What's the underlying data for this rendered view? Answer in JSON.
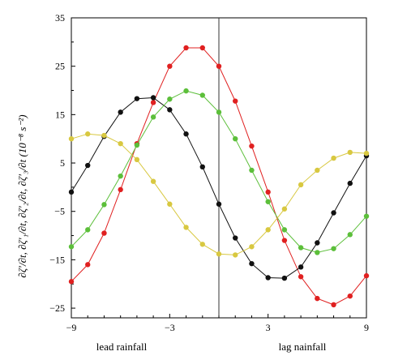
{
  "chart_data": {
    "type": "line",
    "title": "",
    "xlabel": "",
    "ylabel": "∂ζ′/∂t, ∂ζ′₁/∂t, ∂ζ′₂/∂t, ∂ζ′₃/∂t  (10⁻⁸ s⁻²)",
    "xlim": [
      -9,
      9
    ],
    "ylim": [
      -27,
      35
    ],
    "xticks": [
      -9,
      -3,
      3,
      9
    ],
    "yticks": [
      35,
      25,
      15,
      5,
      -5,
      -15,
      -25
    ],
    "x_annotations": {
      "left": "lead  rainfall",
      "right": "lag  nainfall"
    },
    "reference_line_x": 0,
    "grid": false,
    "legend": "none",
    "x": [
      -9,
      -8,
      -7,
      -6,
      -5,
      -4,
      -3,
      -2,
      -1,
      0,
      1,
      2,
      3,
      4,
      5,
      6,
      7,
      8,
      9
    ],
    "series": [
      {
        "color": "#e02020",
        "values": [
          -19.5,
          -16,
          -9.5,
          -0.5,
          9,
          17.5,
          25,
          28.8,
          28.8,
          25,
          17.8,
          8.5,
          -1,
          -11,
          -18.5,
          -23,
          -24.3,
          -22.5,
          -18.3
        ]
      },
      {
        "color": "#111111",
        "values": [
          -1,
          4.5,
          10.5,
          15.5,
          18.3,
          18.5,
          16,
          11,
          4.2,
          -3.5,
          -10.5,
          -15.8,
          -18.7,
          -18.8,
          -16.5,
          -11.5,
          -5.3,
          0.8,
          6.5
        ]
      },
      {
        "color": "#5cbf3a",
        "values": [
          -12.3,
          -8.8,
          -3.6,
          2.3,
          8.7,
          14.5,
          18.2,
          19.9,
          19,
          15.5,
          10,
          3.5,
          -3,
          -8.8,
          -12.5,
          -13.5,
          -12.7,
          -9.8,
          -6
        ]
      },
      {
        "color": "#d8c840",
        "values": [
          10,
          11,
          10.7,
          9,
          5.7,
          1.2,
          -3.5,
          -8.3,
          -11.8,
          -13.8,
          -14,
          -12.3,
          -8.8,
          -4.5,
          0.5,
          3.5,
          6,
          7.2,
          7
        ]
      }
    ]
  }
}
